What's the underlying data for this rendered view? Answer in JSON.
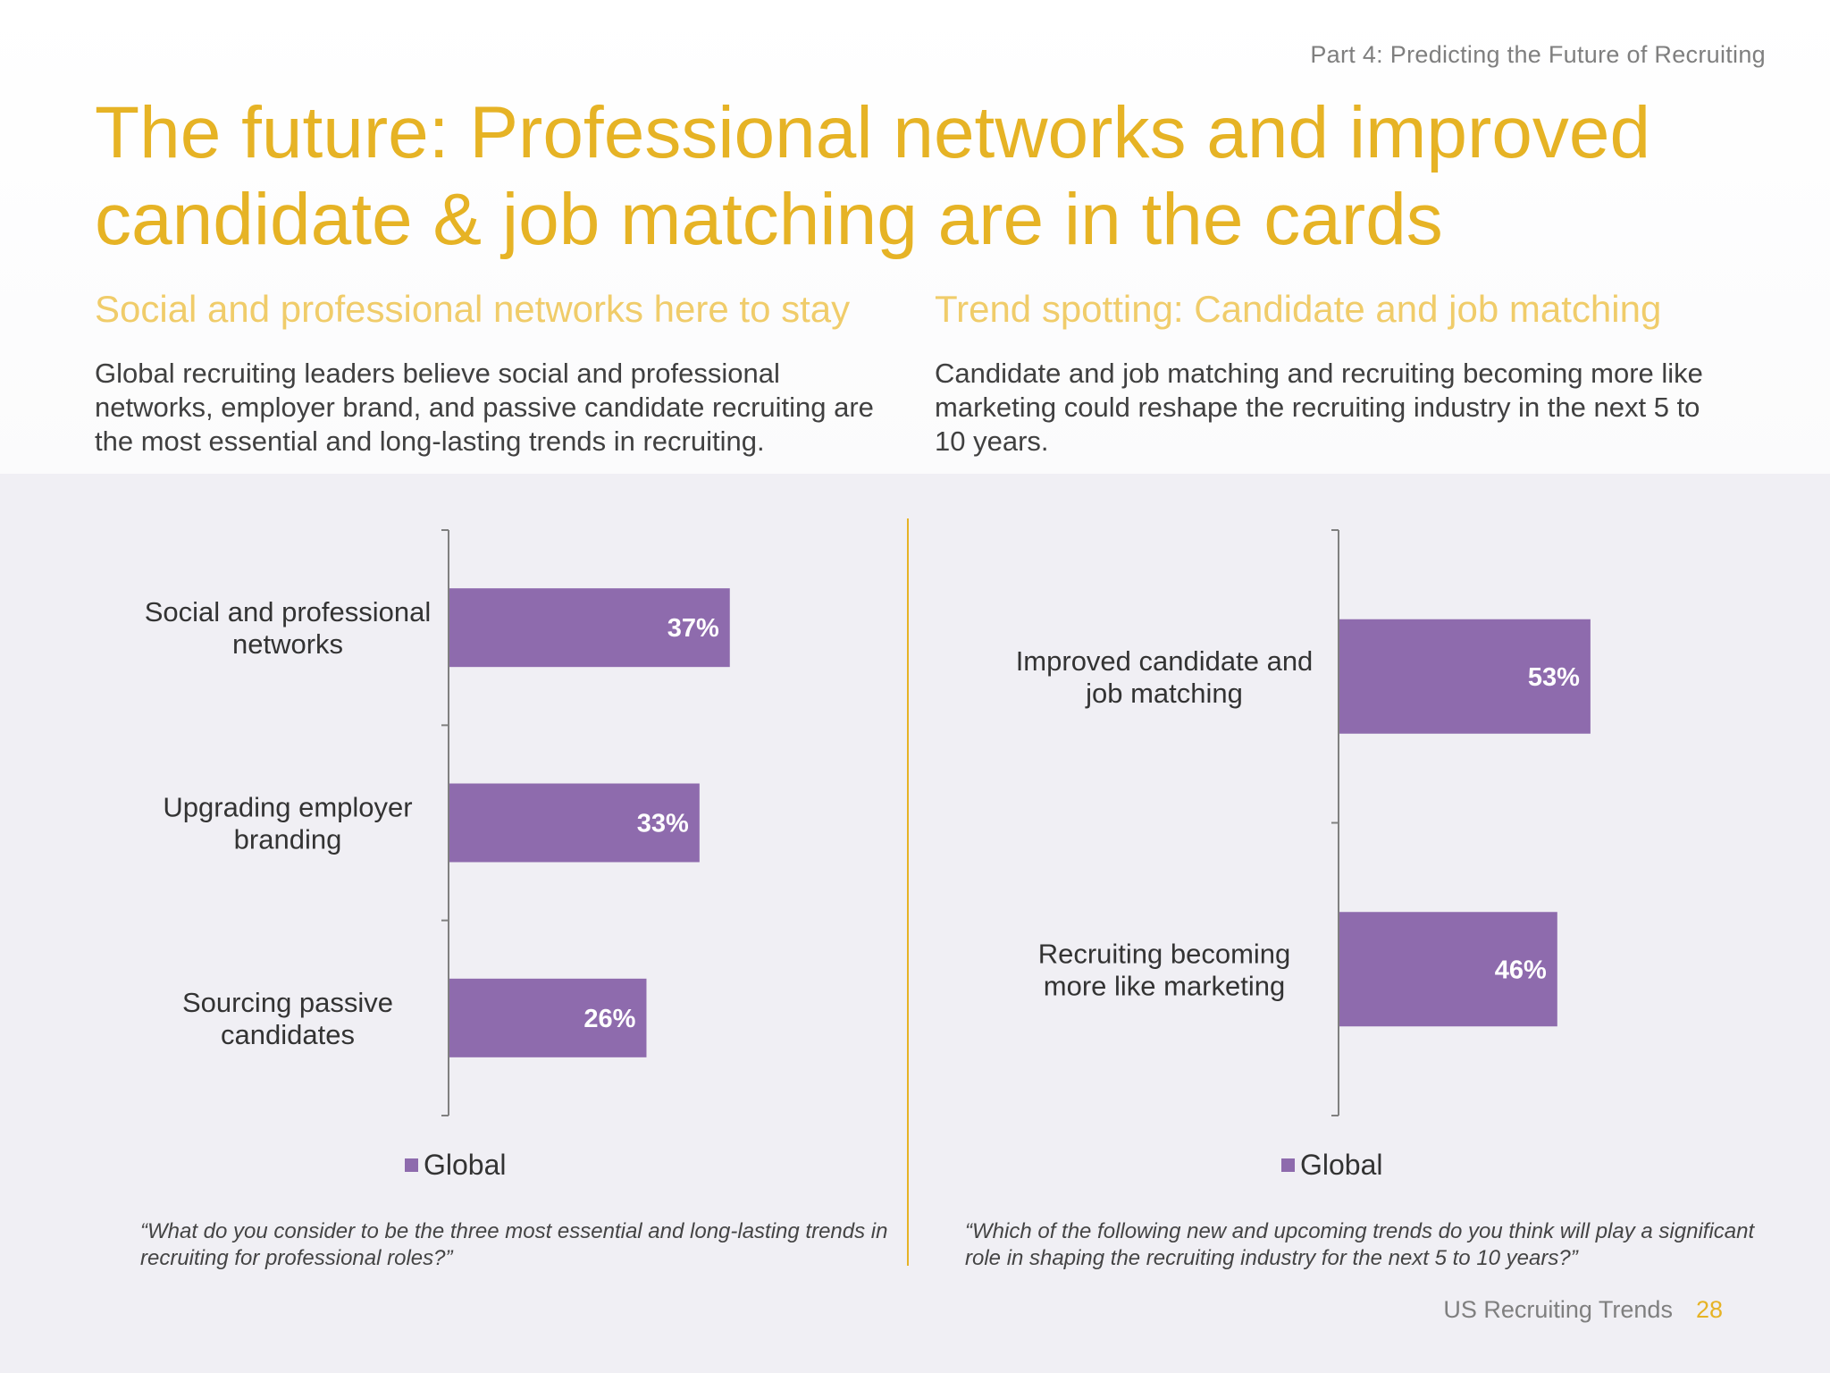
{
  "header": {
    "part_label": "Part 4: Predicting the Future of Recruiting",
    "title": "The future: Professional networks and improved candidate & job matching are in the cards"
  },
  "left_panel": {
    "subtitle": "Social and professional networks here to stay",
    "description": "Global recruiting leaders believe social and professional networks, employer brand, and passive candidate recruiting are the most essential and long-lasting trends in recruiting.",
    "legend": "Global",
    "question": "“What do you consider to be the three most essential and long-lasting trends in recruiting for professional roles?”"
  },
  "right_panel": {
    "subtitle": "Trend spotting: Candidate and job matching",
    "description": "Candidate and job matching and recruiting becoming more like marketing could reshape the recruiting industry in the next 5 to 10 years.",
    "legend": "Global",
    "question": "“Which of the following new and upcoming trends do you think will play a significant role in shaping the recruiting industry for the next 5 to 10 years?”"
  },
  "footer": {
    "report_name": "US Recruiting Trends",
    "page_number": "28"
  },
  "colors": {
    "accent": "#e6b325",
    "bar": "#8e6bad",
    "bar_label": "#ffffff"
  },
  "chart_data": [
    {
      "type": "bar",
      "orientation": "horizontal",
      "categories": [
        [
          "Social and professional",
          "networks"
        ],
        [
          "Upgrading employer",
          "branding"
        ],
        [
          "Sourcing passive",
          "candidates"
        ]
      ],
      "series": [
        {
          "name": "Global",
          "values": [
            37,
            33,
            26
          ]
        }
      ],
      "value_labels": [
        "37%",
        "33%",
        "26%"
      ],
      "xlim": [
        0,
        100
      ],
      "legend": "bottom"
    },
    {
      "type": "bar",
      "orientation": "horizontal",
      "categories": [
        [
          "Improved candidate and",
          "job matching"
        ],
        [
          "Recruiting becoming",
          "more like marketing"
        ]
      ],
      "series": [
        {
          "name": "Global",
          "values": [
            53,
            46
          ]
        }
      ],
      "value_labels": [
        "53%",
        "46%"
      ],
      "xlim": [
        0,
        100
      ],
      "legend": "bottom"
    }
  ]
}
